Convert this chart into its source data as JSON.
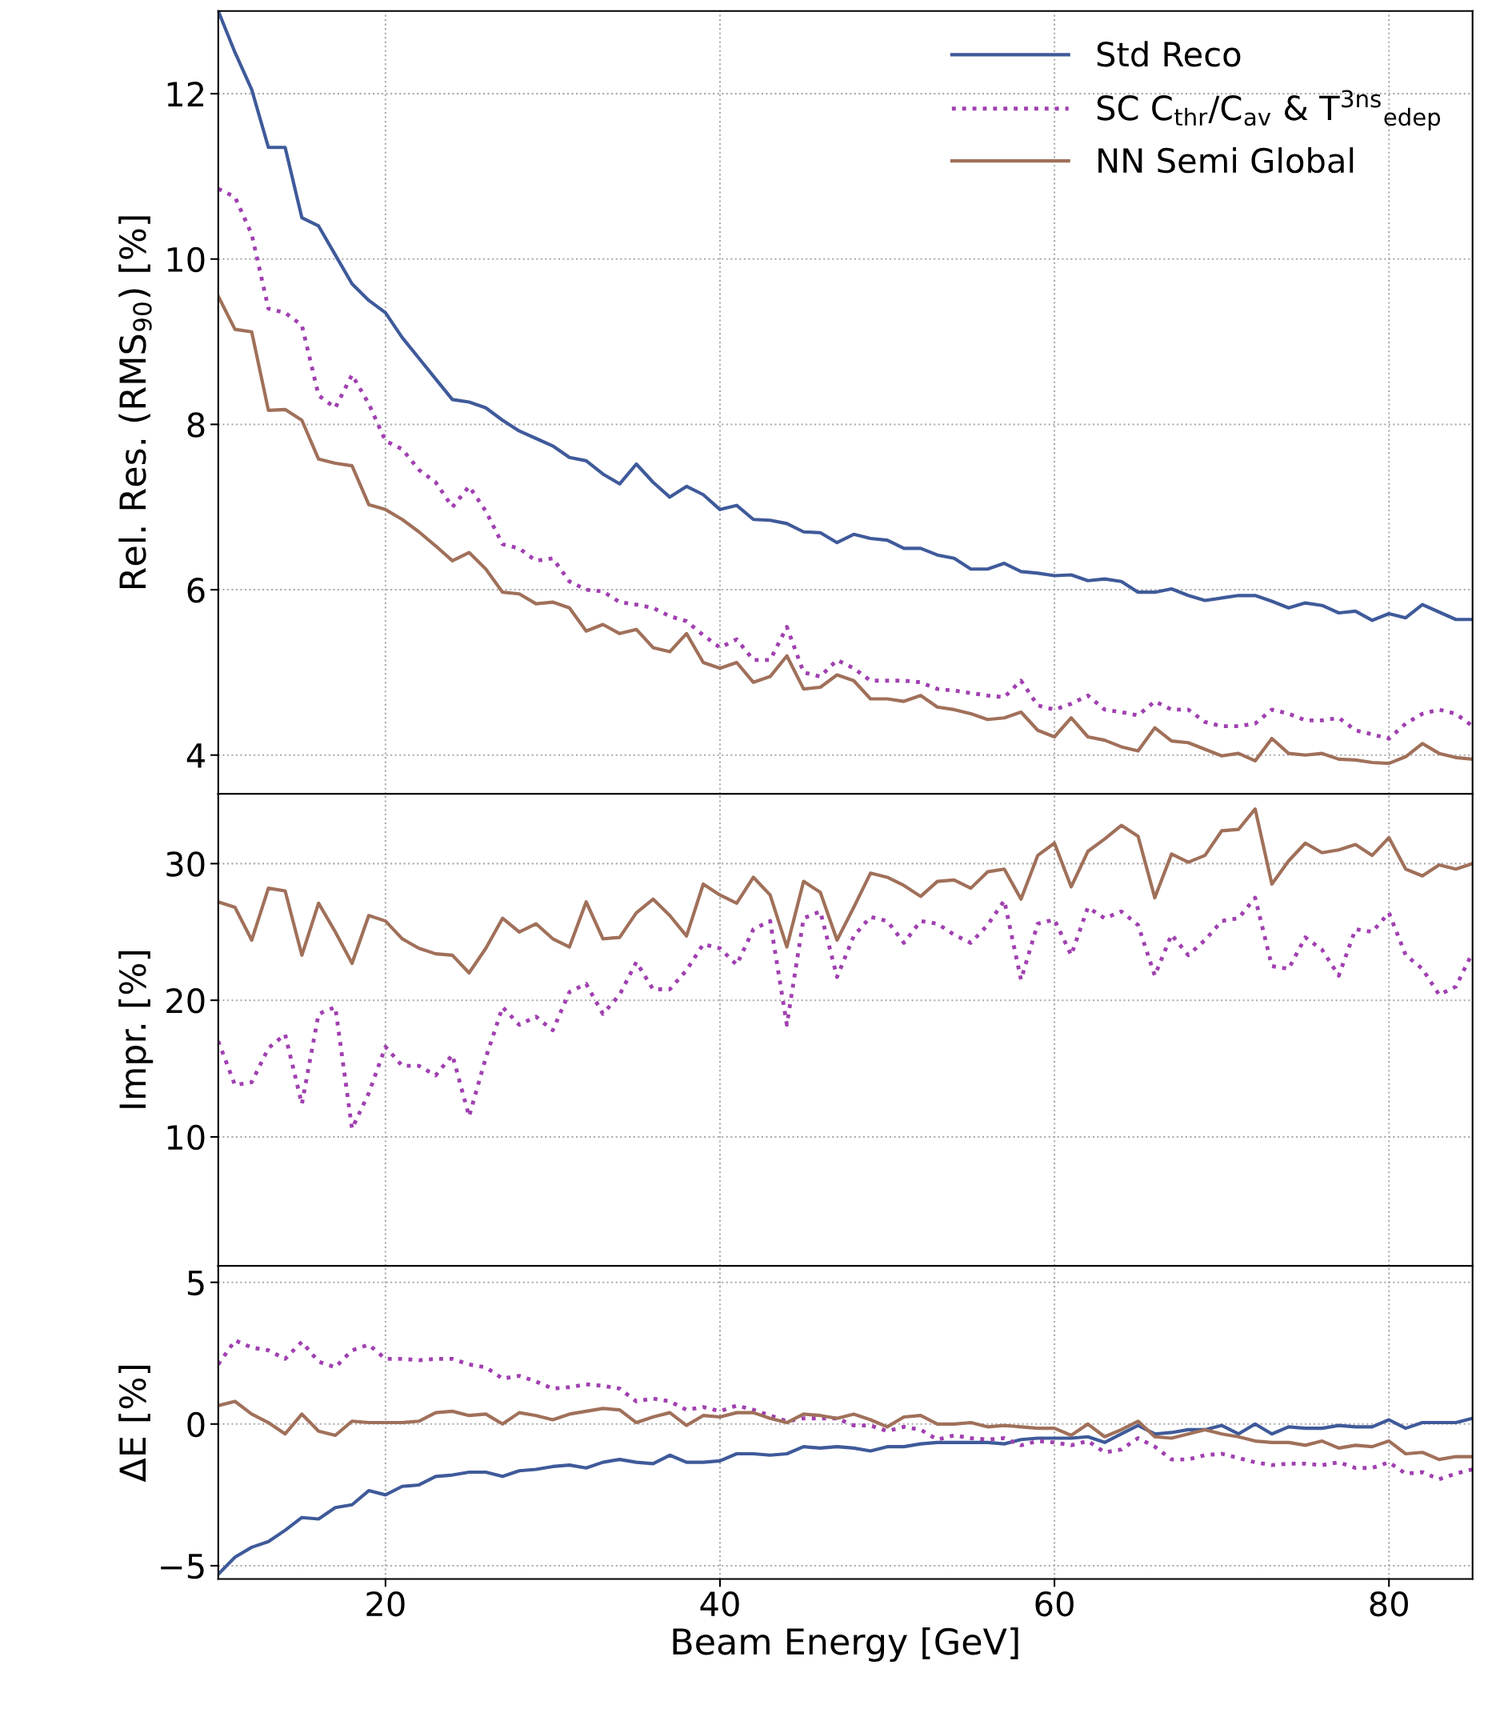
{
  "chart_data": [
    {
      "type": "line",
      "ylabel": "Rel. Res. (RMS$_{90}$) [%]",
      "xlim": [
        10,
        85
      ],
      "xticks": [
        20,
        40,
        60,
        80
      ],
      "ylim": [
        3.53,
        13
      ],
      "yticks": [
        4,
        6,
        8,
        10,
        12
      ],
      "grid": true,
      "legend": "top right",
      "tick_labels": "y",
      "x": [
        10,
        11,
        12,
        13,
        14,
        15,
        16,
        17,
        18,
        19,
        20,
        21,
        22,
        23,
        24,
        25,
        26,
        27,
        28,
        29,
        30,
        31,
        32,
        33,
        34,
        35,
        36,
        37,
        38,
        39,
        40,
        41,
        42,
        43,
        44,
        45,
        46,
        47,
        48,
        49,
        50,
        51,
        52,
        53,
        54,
        55,
        56,
        57,
        58,
        59,
        60,
        61,
        62,
        63,
        64,
        65,
        66,
        67,
        68,
        69,
        70,
        71,
        72,
        73,
        74,
        75,
        76,
        77,
        78,
        79,
        80,
        81,
        82,
        83,
        84,
        85
      ],
      "series": [
        {
          "name": "Std Reco",
          "color": "#3f5a9a",
          "line_style": "solid",
          "values": [
            13.0,
            12.5,
            12.05,
            11.35,
            11.35,
            10.5,
            10.4,
            10.05,
            9.7,
            9.5,
            9.35,
            9.05,
            8.8,
            8.55,
            8.3,
            8.27,
            8.2,
            8.05,
            7.92,
            7.83,
            7.74,
            7.6,
            7.56,
            7.4,
            7.28,
            7.52,
            7.3,
            7.12,
            7.25,
            7.15,
            6.97,
            7.02,
            6.85,
            6.84,
            6.8,
            6.7,
            6.69,
            6.57,
            6.67,
            6.62,
            6.6,
            6.5,
            6.5,
            6.42,
            6.38,
            6.25,
            6.25,
            6.32,
            6.22,
            6.2,
            6.17,
            6.18,
            6.11,
            6.13,
            6.1,
            5.97,
            5.97,
            6.01,
            5.93,
            5.87,
            5.9,
            5.93,
            5.93,
            5.86,
            5.78,
            5.84,
            5.81,
            5.72,
            5.74,
            5.63,
            5.71,
            5.66,
            5.82,
            5.73,
            5.64,
            5.64
          ]
        },
        {
          "name": "SC C$_{thr}$/C$_{av}$ & T$^{3ns}$$_{edep}$",
          "color": "#a040b0",
          "line_style": "dotted",
          "values": [
            10.85,
            10.75,
            10.3,
            9.4,
            9.35,
            9.2,
            8.35,
            8.2,
            8.6,
            8.25,
            7.8,
            7.7,
            7.45,
            7.3,
            7.0,
            7.25,
            6.95,
            6.55,
            6.5,
            6.35,
            6.38,
            6.1,
            6.0,
            5.98,
            5.85,
            5.82,
            5.78,
            5.68,
            5.62,
            5.45,
            5.3,
            5.4,
            5.15,
            5.15,
            5.55,
            5.0,
            4.95,
            5.15,
            5.05,
            4.9,
            4.9,
            4.9,
            4.88,
            4.8,
            4.78,
            4.75,
            4.72,
            4.7,
            4.9,
            4.6,
            4.55,
            4.62,
            4.72,
            4.55,
            4.52,
            4.48,
            4.65,
            4.55,
            4.55,
            4.4,
            4.35,
            4.35,
            4.38,
            4.55,
            4.5,
            4.42,
            4.42,
            4.45,
            4.3,
            4.25,
            4.2,
            4.38,
            4.5,
            4.55,
            4.5,
            4.35
          ]
        },
        {
          "name": "NN Semi Global",
          "color": "#a0705a",
          "line_style": "solid",
          "values": [
            9.55,
            9.15,
            9.12,
            8.17,
            8.18,
            8.05,
            7.58,
            7.53,
            7.5,
            7.03,
            6.97,
            6.85,
            6.7,
            6.53,
            6.35,
            6.45,
            6.25,
            5.97,
            5.95,
            5.83,
            5.85,
            5.78,
            5.5,
            5.58,
            5.47,
            5.52,
            5.3,
            5.25,
            5.47,
            5.12,
            5.05,
            5.12,
            4.88,
            4.95,
            5.2,
            4.8,
            4.82,
            4.97,
            4.9,
            4.68,
            4.68,
            4.65,
            4.72,
            4.58,
            4.55,
            4.5,
            4.43,
            4.45,
            4.52,
            4.3,
            4.22,
            4.45,
            4.22,
            4.18,
            4.1,
            4.05,
            4.33,
            4.17,
            4.15,
            4.07,
            3.99,
            4.02,
            3.93,
            4.2,
            4.02,
            4.0,
            4.02,
            3.95,
            3.94,
            3.91,
            3.9,
            3.98,
            4.14,
            4.02,
            3.97,
            3.95
          ]
        }
      ]
    },
    {
      "type": "line",
      "ylabel": "Impr. [%]",
      "xlim": [
        10,
        85
      ],
      "xticks": [
        20,
        40,
        60,
        80
      ],
      "ylim": [
        0.56,
        35.1
      ],
      "yticks": [
        10,
        20,
        30
      ],
      "grid": true,
      "tick_labels": "y",
      "x": [
        10,
        11,
        12,
        13,
        14,
        15,
        16,
        17,
        18,
        19,
        20,
        21,
        22,
        23,
        24,
        25,
        26,
        27,
        28,
        29,
        30,
        31,
        32,
        33,
        34,
        35,
        36,
        37,
        38,
        39,
        40,
        41,
        42,
        43,
        44,
        45,
        46,
        47,
        48,
        49,
        50,
        51,
        52,
        53,
        54,
        55,
        56,
        57,
        58,
        59,
        60,
        61,
        62,
        63,
        64,
        65,
        66,
        67,
        68,
        69,
        70,
        71,
        72,
        73,
        74,
        75,
        76,
        77,
        78,
        79,
        80,
        81,
        82,
        83,
        84,
        85
      ],
      "series": [
        {
          "color": "#a040b0",
          "line_style": "dotted",
          "values": [
            17.0,
            13.8,
            14.0,
            16.5,
            17.5,
            12.4,
            19.0,
            19.5,
            10.6,
            13.2,
            16.6,
            15.2,
            15.2,
            14.5,
            16.0,
            11.5,
            15.8,
            19.5,
            18.2,
            18.8,
            17.8,
            20.6,
            21.2,
            19.0,
            20.4,
            22.8,
            20.8,
            20.8,
            22.2,
            24.1,
            23.8,
            22.6,
            25.2,
            25.8,
            18.2,
            26.0,
            26.5,
            21.7,
            24.7,
            26.1,
            25.8,
            24.2,
            25.8,
            25.6,
            24.8,
            24.2,
            25.5,
            27.3,
            21.5,
            25.6,
            25.9,
            23.3,
            26.8,
            26.0,
            26.5,
            25.5,
            21.8,
            24.8,
            23.3,
            24.4,
            25.8,
            26.0,
            27.5,
            22.5,
            22.3,
            24.6,
            23.7,
            21.8,
            25.2,
            25.0,
            26.4,
            23.3,
            22.3,
            20.4,
            21.0,
            23.5
          ]
        },
        {
          "color": "#a0705a",
          "line_style": "solid",
          "values": [
            27.2,
            26.8,
            24.4,
            28.2,
            28.0,
            23.3,
            27.1,
            25.0,
            22.7,
            26.2,
            25.8,
            24.5,
            23.8,
            23.4,
            23.3,
            22.0,
            23.8,
            26.0,
            25.0,
            25.6,
            24.5,
            23.9,
            27.2,
            24.5,
            24.6,
            26.4,
            27.4,
            26.2,
            24.7,
            28.5,
            27.7,
            27.1,
            29.0,
            27.7,
            23.9,
            28.7,
            27.9,
            24.4,
            26.8,
            29.3,
            29.0,
            28.4,
            27.6,
            28.7,
            28.8,
            28.2,
            29.4,
            29.6,
            27.4,
            30.6,
            31.5,
            28.3,
            30.9,
            31.8,
            32.8,
            32.0,
            27.5,
            30.7,
            30.1,
            30.6,
            32.4,
            32.5,
            34.0,
            28.5,
            30.2,
            31.5,
            30.8,
            31.0,
            31.4,
            30.6,
            31.9,
            29.6,
            29.1,
            29.9,
            29.6,
            30.0
          ]
        }
      ]
    },
    {
      "type": "line",
      "ylabel": "ΔE [%]",
      "xlabel": "Beam Energy [GeV]",
      "xlim": [
        10,
        85
      ],
      "xticks": [
        20,
        40,
        60,
        80
      ],
      "ylim": [
        -5.47,
        5.58
      ],
      "yticks": [
        {
          "value": -5,
          "label": "−5"
        },
        0,
        5
      ],
      "grid": true,
      "x": [
        10,
        11,
        12,
        13,
        14,
        15,
        16,
        17,
        18,
        19,
        20,
        21,
        22,
        23,
        24,
        25,
        26,
        27,
        28,
        29,
        30,
        31,
        32,
        33,
        34,
        35,
        36,
        37,
        38,
        39,
        40,
        41,
        42,
        43,
        44,
        45,
        46,
        47,
        48,
        49,
        50,
        51,
        52,
        53,
        54,
        55,
        56,
        57,
        58,
        59,
        60,
        61,
        62,
        63,
        64,
        65,
        66,
        67,
        68,
        69,
        70,
        71,
        72,
        73,
        74,
        75,
        76,
        77,
        78,
        79,
        80,
        81,
        82,
        83,
        84,
        85
      ],
      "series": [
        {
          "color": "#3f5a9a",
          "line_style": "solid",
          "values": [
            -5.3,
            -4.7,
            -4.35,
            -4.15,
            -3.75,
            -3.3,
            -3.35,
            -2.95,
            -2.85,
            -2.35,
            -2.5,
            -2.2,
            -2.15,
            -1.85,
            -1.8,
            -1.7,
            -1.7,
            -1.85,
            -1.65,
            -1.6,
            -1.5,
            -1.45,
            -1.55,
            -1.35,
            -1.25,
            -1.35,
            -1.4,
            -1.1,
            -1.35,
            -1.35,
            -1.3,
            -1.05,
            -1.05,
            -1.1,
            -1.05,
            -0.8,
            -0.85,
            -0.8,
            -0.85,
            -0.95,
            -0.8,
            -0.8,
            -0.7,
            -0.65,
            -0.65,
            -0.65,
            -0.65,
            -0.7,
            -0.55,
            -0.5,
            -0.5,
            -0.5,
            -0.45,
            -0.65,
            -0.35,
            -0.05,
            -0.35,
            -0.3,
            -0.2,
            -0.2,
            -0.05,
            -0.35,
            0.0,
            -0.35,
            -0.1,
            -0.15,
            -0.15,
            -0.05,
            -0.1,
            -0.1,
            0.15,
            -0.15,
            0.05,
            0.05,
            0.05,
            0.2
          ]
        },
        {
          "color": "#a040b0",
          "line_style": "dotted",
          "values": [
            2.1,
            2.95,
            2.7,
            2.6,
            2.3,
            2.9,
            2.2,
            2.0,
            2.6,
            2.8,
            2.3,
            2.3,
            2.25,
            2.3,
            2.3,
            2.1,
            2.0,
            1.6,
            1.7,
            1.5,
            1.25,
            1.3,
            1.4,
            1.35,
            1.25,
            0.8,
            0.9,
            0.8,
            0.5,
            0.6,
            0.45,
            0.65,
            0.5,
            0.3,
            0.1,
            0.2,
            0.2,
            0.2,
            -0.05,
            -0.05,
            -0.25,
            -0.1,
            -0.2,
            -0.55,
            -0.4,
            -0.5,
            -0.55,
            -0.5,
            -0.75,
            -0.6,
            -0.65,
            -0.75,
            -0.6,
            -1.0,
            -0.9,
            -0.5,
            -0.8,
            -1.25,
            -1.25,
            -1.1,
            -1.05,
            -1.2,
            -1.35,
            -1.45,
            -1.4,
            -1.4,
            -1.45,
            -1.35,
            -1.55,
            -1.55,
            -1.35,
            -1.75,
            -1.7,
            -1.95,
            -1.75,
            -1.6
          ]
        },
        {
          "color": "#a0705a",
          "line_style": "solid",
          "values": [
            0.65,
            0.8,
            0.35,
            0.05,
            -0.35,
            0.35,
            -0.25,
            -0.4,
            0.1,
            0.05,
            0.05,
            0.05,
            0.1,
            0.4,
            0.45,
            0.3,
            0.35,
            0.0,
            0.4,
            0.3,
            0.15,
            0.35,
            0.45,
            0.55,
            0.5,
            0.05,
            0.25,
            0.4,
            -0.05,
            0.3,
            0.25,
            0.4,
            0.4,
            0.2,
            0.05,
            0.35,
            0.3,
            0.2,
            0.35,
            0.15,
            -0.1,
            0.25,
            0.3,
            0.0,
            0.0,
            0.05,
            -0.1,
            -0.05,
            -0.1,
            -0.15,
            -0.15,
            -0.4,
            0.0,
            -0.45,
            -0.2,
            0.1,
            -0.45,
            -0.5,
            -0.35,
            -0.2,
            -0.35,
            -0.45,
            -0.6,
            -0.65,
            -0.65,
            -0.75,
            -0.6,
            -0.85,
            -0.75,
            -0.8,
            -0.6,
            -1.05,
            -1.0,
            -1.25,
            -1.15,
            -1.15
          ]
        }
      ]
    }
  ]
}
